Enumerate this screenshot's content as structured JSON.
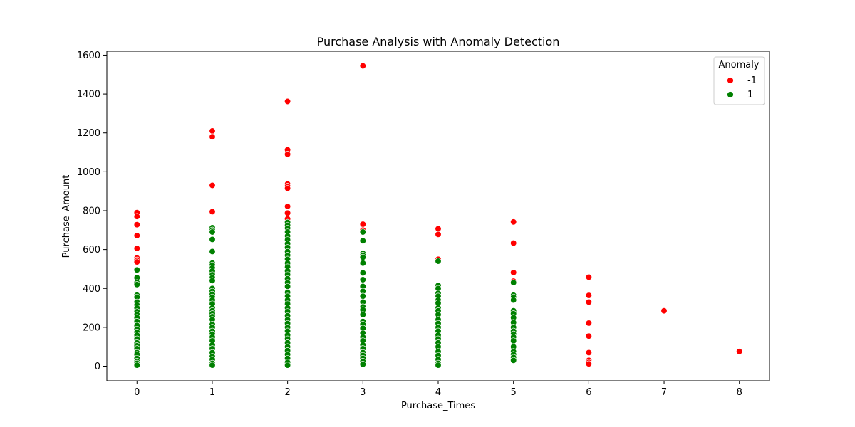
{
  "chart_data": {
    "type": "scatter",
    "title": "Purchase Analysis with Anomaly Detection",
    "xlabel": "Purchase_Times",
    "ylabel": "Purchase_Amount",
    "xlim": [
      -0.4,
      8.4
    ],
    "ylim": [
      -75,
      1620
    ],
    "xticks": [
      0,
      1,
      2,
      3,
      4,
      5,
      6,
      7,
      8
    ],
    "yticks": [
      0,
      200,
      400,
      600,
      800,
      1000,
      1200,
      1400,
      1600
    ],
    "grid": false,
    "legend": {
      "title": "Anomaly",
      "position": "top-right"
    },
    "series": [
      {
        "name": "-1",
        "color": "#ff0000",
        "points": [
          [
            0,
            790
          ],
          [
            0,
            770
          ],
          [
            0,
            728
          ],
          [
            0,
            672
          ],
          [
            0,
            606
          ],
          [
            0,
            556
          ],
          [
            0,
            546
          ],
          [
            0,
            536
          ],
          [
            1,
            1210
          ],
          [
            1,
            1180
          ],
          [
            1,
            930
          ],
          [
            1,
            795
          ],
          [
            2,
            1362
          ],
          [
            2,
            1113
          ],
          [
            2,
            1090
          ],
          [
            2,
            937
          ],
          [
            2,
            925
          ],
          [
            2,
            915
          ],
          [
            2,
            822
          ],
          [
            2,
            788
          ],
          [
            2,
            758
          ],
          [
            3,
            1545
          ],
          [
            3,
            730
          ],
          [
            3,
            700
          ],
          [
            4,
            707
          ],
          [
            4,
            678
          ],
          [
            4,
            550
          ],
          [
            5,
            742
          ],
          [
            5,
            633
          ],
          [
            5,
            482
          ],
          [
            5,
            437
          ],
          [
            6,
            458
          ],
          [
            6,
            364
          ],
          [
            6,
            330
          ],
          [
            6,
            222
          ],
          [
            6,
            155
          ],
          [
            6,
            70
          ],
          [
            6,
            30
          ],
          [
            6,
            20
          ],
          [
            6,
            12
          ],
          [
            7,
            285
          ],
          [
            8,
            76
          ]
        ]
      },
      {
        "name": "1",
        "color": "#008000",
        "points": [
          [
            0,
            495
          ],
          [
            0,
            455
          ],
          [
            0,
            430
          ],
          [
            0,
            420
          ],
          [
            0,
            365
          ],
          [
            0,
            355
          ],
          [
            0,
            330
          ],
          [
            0,
            315
          ],
          [
            0,
            300
          ],
          [
            0,
            280
          ],
          [
            0,
            265
          ],
          [
            0,
            250
          ],
          [
            0,
            230
          ],
          [
            0,
            210
          ],
          [
            0,
            190
          ],
          [
            0,
            175
          ],
          [
            0,
            160
          ],
          [
            0,
            140
          ],
          [
            0,
            120
          ],
          [
            0,
            105
          ],
          [
            0,
            90
          ],
          [
            0,
            70
          ],
          [
            0,
            60
          ],
          [
            0,
            40
          ],
          [
            0,
            25
          ],
          [
            0,
            15
          ],
          [
            0,
            5
          ],
          [
            1,
            712
          ],
          [
            1,
            700
          ],
          [
            1,
            690
          ],
          [
            1,
            652
          ],
          [
            1,
            590
          ],
          [
            1,
            530
          ],
          [
            1,
            520
          ],
          [
            1,
            505
          ],
          [
            1,
            490
          ],
          [
            1,
            470
          ],
          [
            1,
            455
          ],
          [
            1,
            440
          ],
          [
            1,
            400
          ],
          [
            1,
            385
          ],
          [
            1,
            370
          ],
          [
            1,
            355
          ],
          [
            1,
            340
          ],
          [
            1,
            320
          ],
          [
            1,
            300
          ],
          [
            1,
            285
          ],
          [
            1,
            270
          ],
          [
            1,
            255
          ],
          [
            1,
            240
          ],
          [
            1,
            215
          ],
          [
            1,
            200
          ],
          [
            1,
            180
          ],
          [
            1,
            165
          ],
          [
            1,
            150
          ],
          [
            1,
            130
          ],
          [
            1,
            110
          ],
          [
            1,
            90
          ],
          [
            1,
            70
          ],
          [
            1,
            50
          ],
          [
            1,
            35
          ],
          [
            1,
            15
          ],
          [
            1,
            5
          ],
          [
            2,
            740
          ],
          [
            2,
            725
          ],
          [
            2,
            710
          ],
          [
            2,
            690
          ],
          [
            2,
            670
          ],
          [
            2,
            650
          ],
          [
            2,
            630
          ],
          [
            2,
            610
          ],
          [
            2,
            590
          ],
          [
            2,
            570
          ],
          [
            2,
            550
          ],
          [
            2,
            530
          ],
          [
            2,
            510
          ],
          [
            2,
            490
          ],
          [
            2,
            470
          ],
          [
            2,
            450
          ],
          [
            2,
            430
          ],
          [
            2,
            410
          ],
          [
            2,
            380
          ],
          [
            2,
            360
          ],
          [
            2,
            340
          ],
          [
            2,
            320
          ],
          [
            2,
            300
          ],
          [
            2,
            280
          ],
          [
            2,
            260
          ],
          [
            2,
            240
          ],
          [
            2,
            220
          ],
          [
            2,
            200
          ],
          [
            2,
            180
          ],
          [
            2,
            160
          ],
          [
            2,
            140
          ],
          [
            2,
            120
          ],
          [
            2,
            100
          ],
          [
            2,
            80
          ],
          [
            2,
            60
          ],
          [
            2,
            40
          ],
          [
            2,
            20
          ],
          [
            2,
            5
          ],
          [
            3,
            690
          ],
          [
            3,
            645
          ],
          [
            3,
            580
          ],
          [
            3,
            570
          ],
          [
            3,
            560
          ],
          [
            3,
            530
          ],
          [
            3,
            480
          ],
          [
            3,
            445
          ],
          [
            3,
            410
          ],
          [
            3,
            385
          ],
          [
            3,
            360
          ],
          [
            3,
            330
          ],
          [
            3,
            305
          ],
          [
            3,
            290
          ],
          [
            3,
            265
          ],
          [
            3,
            230
          ],
          [
            3,
            215
          ],
          [
            3,
            195
          ],
          [
            3,
            170
          ],
          [
            3,
            150
          ],
          [
            3,
            130
          ],
          [
            3,
            110
          ],
          [
            3,
            90
          ],
          [
            3,
            70
          ],
          [
            3,
            55
          ],
          [
            3,
            40
          ],
          [
            3,
            25
          ],
          [
            3,
            10
          ],
          [
            4,
            540
          ],
          [
            4,
            415
          ],
          [
            4,
            400
          ],
          [
            4,
            375
          ],
          [
            4,
            360
          ],
          [
            4,
            340
          ],
          [
            4,
            325
          ],
          [
            4,
            300
          ],
          [
            4,
            285
          ],
          [
            4,
            265
          ],
          [
            4,
            240
          ],
          [
            4,
            220
          ],
          [
            4,
            200
          ],
          [
            4,
            180
          ],
          [
            4,
            160
          ],
          [
            4,
            140
          ],
          [
            4,
            120
          ],
          [
            4,
            100
          ],
          [
            4,
            75
          ],
          [
            4,
            55
          ],
          [
            4,
            35
          ],
          [
            4,
            15
          ],
          [
            4,
            5
          ],
          [
            5,
            430
          ],
          [
            5,
            365
          ],
          [
            5,
            355
          ],
          [
            5,
            340
          ],
          [
            5,
            285
          ],
          [
            5,
            270
          ],
          [
            5,
            250
          ],
          [
            5,
            225
          ],
          [
            5,
            200
          ],
          [
            5,
            180
          ],
          [
            5,
            165
          ],
          [
            5,
            150
          ],
          [
            5,
            130
          ],
          [
            5,
            100
          ],
          [
            5,
            75
          ],
          [
            5,
            60
          ],
          [
            5,
            45
          ],
          [
            5,
            30
          ]
        ]
      }
    ]
  }
}
